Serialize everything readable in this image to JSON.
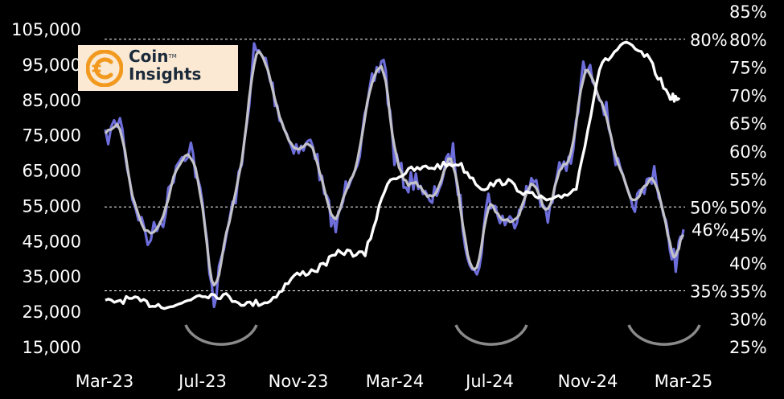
{
  "brand": {
    "name_line1": "Coin",
    "name_line2": "Insights",
    "tm": "TM",
    "accent": "#f29a1f"
  },
  "colors": {
    "price": "#ffffff",
    "pct_raw": "#6d6ddb",
    "pct_smooth": "#c2c2c8",
    "guides": "#ffffff",
    "arcs": "#8a8a8a"
  },
  "chart_data": {
    "type": "line",
    "title": "",
    "xlabel": "",
    "ylabel": "",
    "x_ticks": [
      "Mar-23",
      "Jul-23",
      "Nov-23",
      "Mar-24",
      "Jul-24",
      "Nov-24",
      "Mar-25"
    ],
    "y_left": {
      "ticks": [
        "105,000",
        "95,000",
        "85,000",
        "75,000",
        "65,000",
        "55,000",
        "45,000",
        "35,000",
        "25,000",
        "15,000"
      ],
      "range": [
        15000,
        105000
      ]
    },
    "y_right": {
      "ticks": [
        "85%",
        "80%",
        "75%",
        "70%",
        "65%",
        "60%",
        "55%",
        "50%",
        "45%",
        "40%",
        "35%",
        "30%",
        "25%"
      ],
      "range": [
        25,
        85
      ]
    },
    "reference_lines": [
      {
        "value": 80,
        "label": "80%"
      },
      {
        "value": 50,
        "label": "50%"
      },
      {
        "value": 35,
        "label": "35%"
      }
    ],
    "end_annotation": {
      "value": 46,
      "label": "46%"
    },
    "cycle_lows": [
      "Jul-23",
      "Jul-24",
      "Mar-25"
    ],
    "series": [
      {
        "axis": "left",
        "x": [
          "2023-03-01",
          "2023-04-01",
          "2023-05-01",
          "2023-06-01",
          "2023-07-01",
          "2023-08-01",
          "2023-09-01",
          "2023-10-01",
          "2023-11-01",
          "2023-12-01",
          "2024-01-01",
          "2024-02-01",
          "2024-03-01",
          "2024-04-01",
          "2024-05-01",
          "2024-06-01",
          "2024-07-01",
          "2024-08-01",
          "2024-09-01",
          "2024-10-01",
          "2024-11-01",
          "2024-12-01",
          "2025-01-01",
          "2025-02-01",
          "2025-03-01",
          "2025-03-15"
        ],
        "values": [
          27500,
          28500,
          27000,
          26500,
          30000,
          29500,
          27000,
          28000,
          35000,
          37000,
          42000,
          41000,
          62000,
          65000,
          66000,
          67000,
          60000,
          62000,
          58000,
          56000,
          60000,
          94000,
          101000,
          97000,
          86000,
          85000
        ]
      },
      {
        "axis": "right",
        "x": [
          "2023-03-01",
          "2023-03-20",
          "2023-04-05",
          "2023-04-25",
          "2023-05-15",
          "2023-06-01",
          "2023-06-20",
          "2023-07-05",
          "2023-07-20",
          "2023-08-05",
          "2023-08-25",
          "2023-09-10",
          "2023-09-25",
          "2023-10-10",
          "2023-10-25",
          "2023-11-10",
          "2023-11-25",
          "2023-12-10",
          "2023-12-25",
          "2024-01-10",
          "2024-01-25",
          "2024-02-10",
          "2024-02-25",
          "2024-03-10",
          "2024-03-25",
          "2024-04-10",
          "2024-04-25",
          "2024-05-10",
          "2024-05-25",
          "2024-06-10",
          "2024-06-25",
          "2024-07-10",
          "2024-07-25",
          "2024-08-10",
          "2024-08-25",
          "2024-09-10",
          "2024-09-25",
          "2024-10-10",
          "2024-10-25",
          "2024-11-10",
          "2024-11-25",
          "2024-12-10",
          "2024-12-25",
          "2025-01-10",
          "2025-01-25",
          "2025-02-10",
          "2025-02-25",
          "2025-03-10",
          "2025-03-20"
        ],
        "values": [
          62,
          66,
          52,
          44,
          48,
          58,
          61,
          50,
          33,
          45,
          57,
          78,
          76,
          68,
          62,
          60,
          62,
          52,
          46,
          55,
          60,
          72,
          77,
          59,
          54,
          55,
          50,
          55,
          60,
          44,
          37,
          52,
          48,
          47,
          52,
          55,
          47,
          58,
          57,
          75,
          73,
          67,
          57,
          50,
          52,
          57,
          46,
          40,
          46
        ]
      }
    ]
  }
}
